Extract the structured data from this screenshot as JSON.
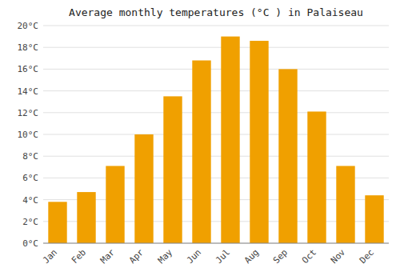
{
  "chart_data": {
    "type": "bar",
    "title": "Average monthly temperatures (°C ) in Palaiseau",
    "categories": [
      "Jan",
      "Feb",
      "Mar",
      "Apr",
      "May",
      "Jun",
      "Jul",
      "Aug",
      "Sep",
      "Oct",
      "Nov",
      "Dec"
    ],
    "values": [
      3.8,
      4.7,
      7.1,
      10.0,
      13.5,
      16.8,
      19.0,
      18.6,
      16.0,
      12.1,
      7.1,
      4.4
    ],
    "color": "#F0A000",
    "ylim": [
      0,
      20
    ],
    "yticks": [
      {
        "value": 0,
        "label": "0°C"
      },
      {
        "value": 2,
        "label": "2°C"
      },
      {
        "value": 4,
        "label": "4°C"
      },
      {
        "value": 6,
        "label": "6°C"
      },
      {
        "value": 8,
        "label": "8°C"
      },
      {
        "value": 10,
        "label": "10°C"
      },
      {
        "value": 12,
        "label": "12°C"
      },
      {
        "value": 14,
        "label": "14°C"
      },
      {
        "value": 16,
        "label": "16°C"
      },
      {
        "value": 18,
        "label": "18°C"
      },
      {
        "value": 20,
        "label": "20°C"
      }
    ],
    "grid": true
  }
}
